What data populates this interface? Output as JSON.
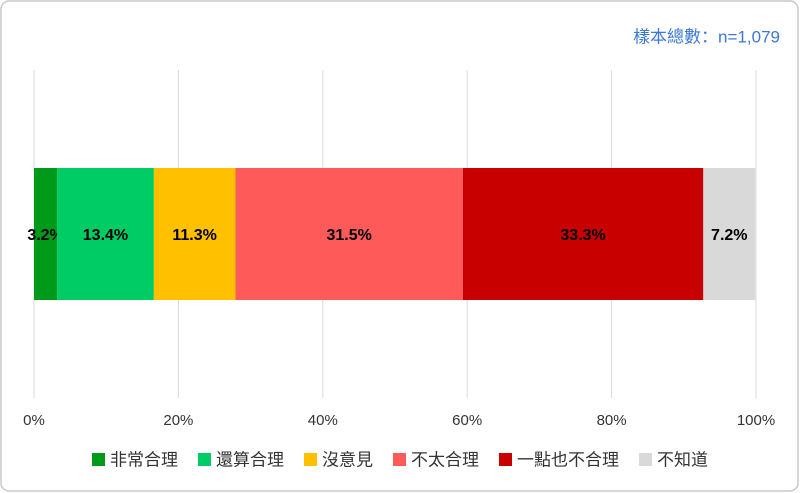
{
  "chart_data": {
    "type": "bar",
    "orientation": "horizontal",
    "stacked": true,
    "annotation": "樣本總數：n=1,079",
    "series": [
      {
        "name": "非常合理",
        "color": "#009a1a",
        "values": [
          3.2
        ],
        "value_labels": [
          "3.2%"
        ]
      },
      {
        "name": "還算合理",
        "color": "#00cc66",
        "values": [
          13.4
        ],
        "value_labels": [
          "13.4%"
        ]
      },
      {
        "name": "沒意見",
        "color": "#ffc000",
        "values": [
          11.3
        ],
        "value_labels": [
          "11.3%"
        ]
      },
      {
        "name": "不太合理",
        "color": "#ff5a5a",
        "values": [
          31.5
        ],
        "value_labels": [
          "31.5%"
        ]
      },
      {
        "name": "一點也不合理",
        "color": "#c80000",
        "values": [
          33.3
        ],
        "value_labels": [
          "33.3%"
        ]
      },
      {
        "name": "不知道",
        "color": "#d9d9d9",
        "values": [
          7.2
        ],
        "value_labels": [
          "7.2%"
        ]
      }
    ],
    "xlim": [
      0,
      100
    ],
    "xticks": [
      {
        "value": 0,
        "label": "0%"
      },
      {
        "value": 20,
        "label": "20%"
      },
      {
        "value": 40,
        "label": "40%"
      },
      {
        "value": 60,
        "label": "60%"
      },
      {
        "value": 80,
        "label": "80%"
      },
      {
        "value": 100,
        "label": "100%"
      }
    ],
    "grid": true,
    "legend": "bottom"
  }
}
